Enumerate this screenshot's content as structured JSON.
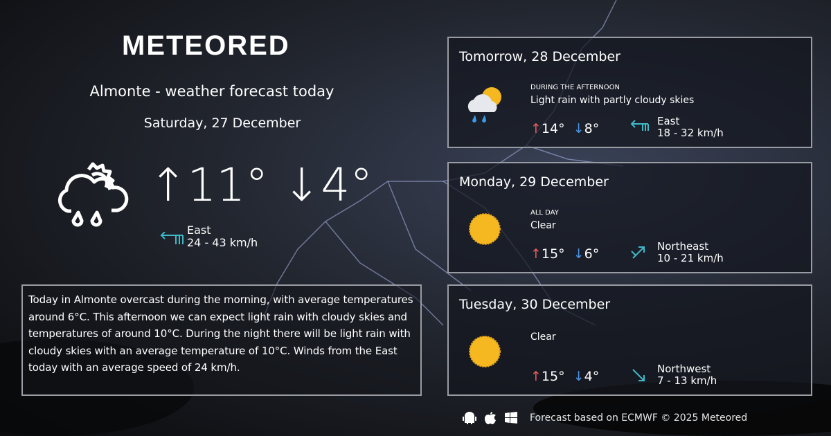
{
  "brand": "METEORED",
  "header": {
    "title": "Almonte - weather forecast today",
    "date": "Saturday, 27 December"
  },
  "today": {
    "high": "11°",
    "low": "4°",
    "icon": "rain-partly-cloudy-outline-icon",
    "wind_dir": "East",
    "wind_speed": "24 - 43 km/h",
    "description": "Today in Almonte overcast during the morning, with average temperatures around 6°C. This afternoon we can expect light rain with cloudy skies and temperatures of around 10°C. During the night there will be light rain with cloudy skies with an average temperature of 10°C. Winds from the East today with an average speed of 24 km/h."
  },
  "forecast": [
    {
      "title": "Tomorrow, 28 December",
      "period": "DURING THE AFTERNOON",
      "summary": "Light rain with partly cloudy skies",
      "high": "14°",
      "low": "8°",
      "wind_dir": "East",
      "wind_speed": "18 - 32 km/h",
      "icon": "rain-partly-cloudy-icon"
    },
    {
      "title": "Monday, 29 December",
      "period": "ALL DAY",
      "summary": "Clear",
      "high": "15°",
      "low": "6°",
      "wind_dir": "Northeast",
      "wind_speed": "10 - 21 km/h",
      "icon": "sun-icon"
    },
    {
      "title": "Tuesday, 30 December",
      "period": "",
      "summary": "Clear",
      "high": "15°",
      "low": "4°",
      "wind_dir": "Northwest",
      "wind_speed": "7 - 13 km/h",
      "icon": "sun-icon"
    }
  ],
  "footer": {
    "text": "Forecast based on ECMWF © 2025 Meteored",
    "platforms": [
      "android-icon",
      "apple-icon",
      "windows-icon"
    ]
  },
  "colors": {
    "up": "#e85a5a",
    "down": "#4b93e3",
    "wind": "#3fb9c8"
  }
}
